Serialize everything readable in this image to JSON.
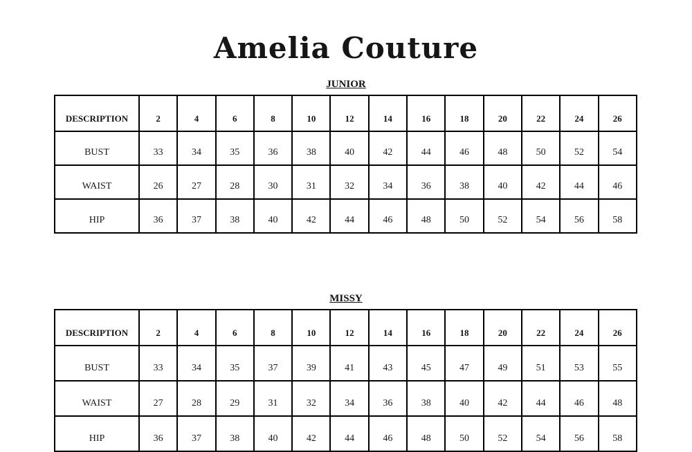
{
  "brand": "Amelia Couture",
  "colors": {
    "background": "#ffffff",
    "text": "#1b1b1b",
    "border": "#000000"
  },
  "tables": [
    {
      "title": "JUNIOR",
      "header": [
        "DESCRIPTION",
        "2",
        "4",
        "6",
        "8",
        "10",
        "12",
        "14",
        "16",
        "18",
        "20",
        "22",
        "24",
        "26"
      ],
      "rows": [
        {
          "label": "BUST",
          "values": [
            "33",
            "34",
            "35",
            "36",
            "38",
            "40",
            "42",
            "44",
            "46",
            "48",
            "50",
            "52",
            "54"
          ]
        },
        {
          "label": "WAIST",
          "values": [
            "26",
            "27",
            "28",
            "30",
            "31",
            "32",
            "34",
            "36",
            "38",
            "40",
            "42",
            "44",
            "46"
          ]
        },
        {
          "label": "HIP",
          "values": [
            "36",
            "37",
            "38",
            "40",
            "42",
            "44",
            "46",
            "48",
            "50",
            "52",
            "54",
            "56",
            "58"
          ]
        }
      ]
    },
    {
      "title": "MISSY",
      "header": [
        "DESCRIPTION",
        "2",
        "4",
        "6",
        "8",
        "10",
        "12",
        "14",
        "16",
        "18",
        "20",
        "22",
        "24",
        "26"
      ],
      "rows": [
        {
          "label": "BUST",
          "values": [
            "33",
            "34",
            "35",
            "37",
            "39",
            "41",
            "43",
            "45",
            "47",
            "49",
            "51",
            "53",
            "55"
          ]
        },
        {
          "label": "WAIST",
          "values": [
            "27",
            "28",
            "29",
            "31",
            "32",
            "34",
            "36",
            "38",
            "40",
            "42",
            "44",
            "46",
            "48"
          ]
        },
        {
          "label": "HIP",
          "values": [
            "36",
            "37",
            "38",
            "40",
            "42",
            "44",
            "46",
            "48",
            "50",
            "52",
            "54",
            "56",
            "58"
          ]
        }
      ]
    }
  ]
}
